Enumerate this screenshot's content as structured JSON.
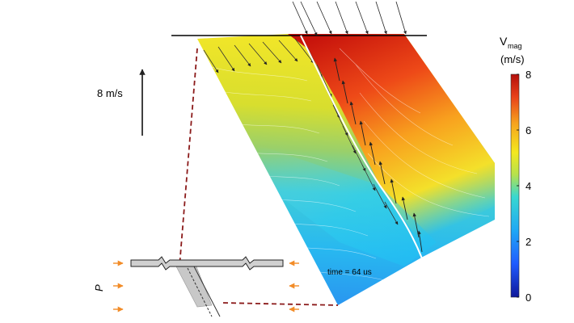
{
  "scale_label": "8 m/s",
  "time_label": "time = 64 us",
  "pressure_label": "P",
  "colorbar": {
    "title_main": "V",
    "title_sub": "mag",
    "units": "(m/s)",
    "ticks": [
      "0",
      "2",
      "4",
      "6",
      "8"
    ],
    "min": 0,
    "max": 8
  },
  "colors": {
    "dashed_line": "#8b1a1a",
    "pressure_arrows": "#f28c28",
    "colormap": [
      "#10189a",
      "#1f78ff",
      "#22c8f0",
      "#9ae05a",
      "#f4e81e",
      "#f6a31e",
      "#e8401a",
      "#b4100c"
    ]
  }
}
